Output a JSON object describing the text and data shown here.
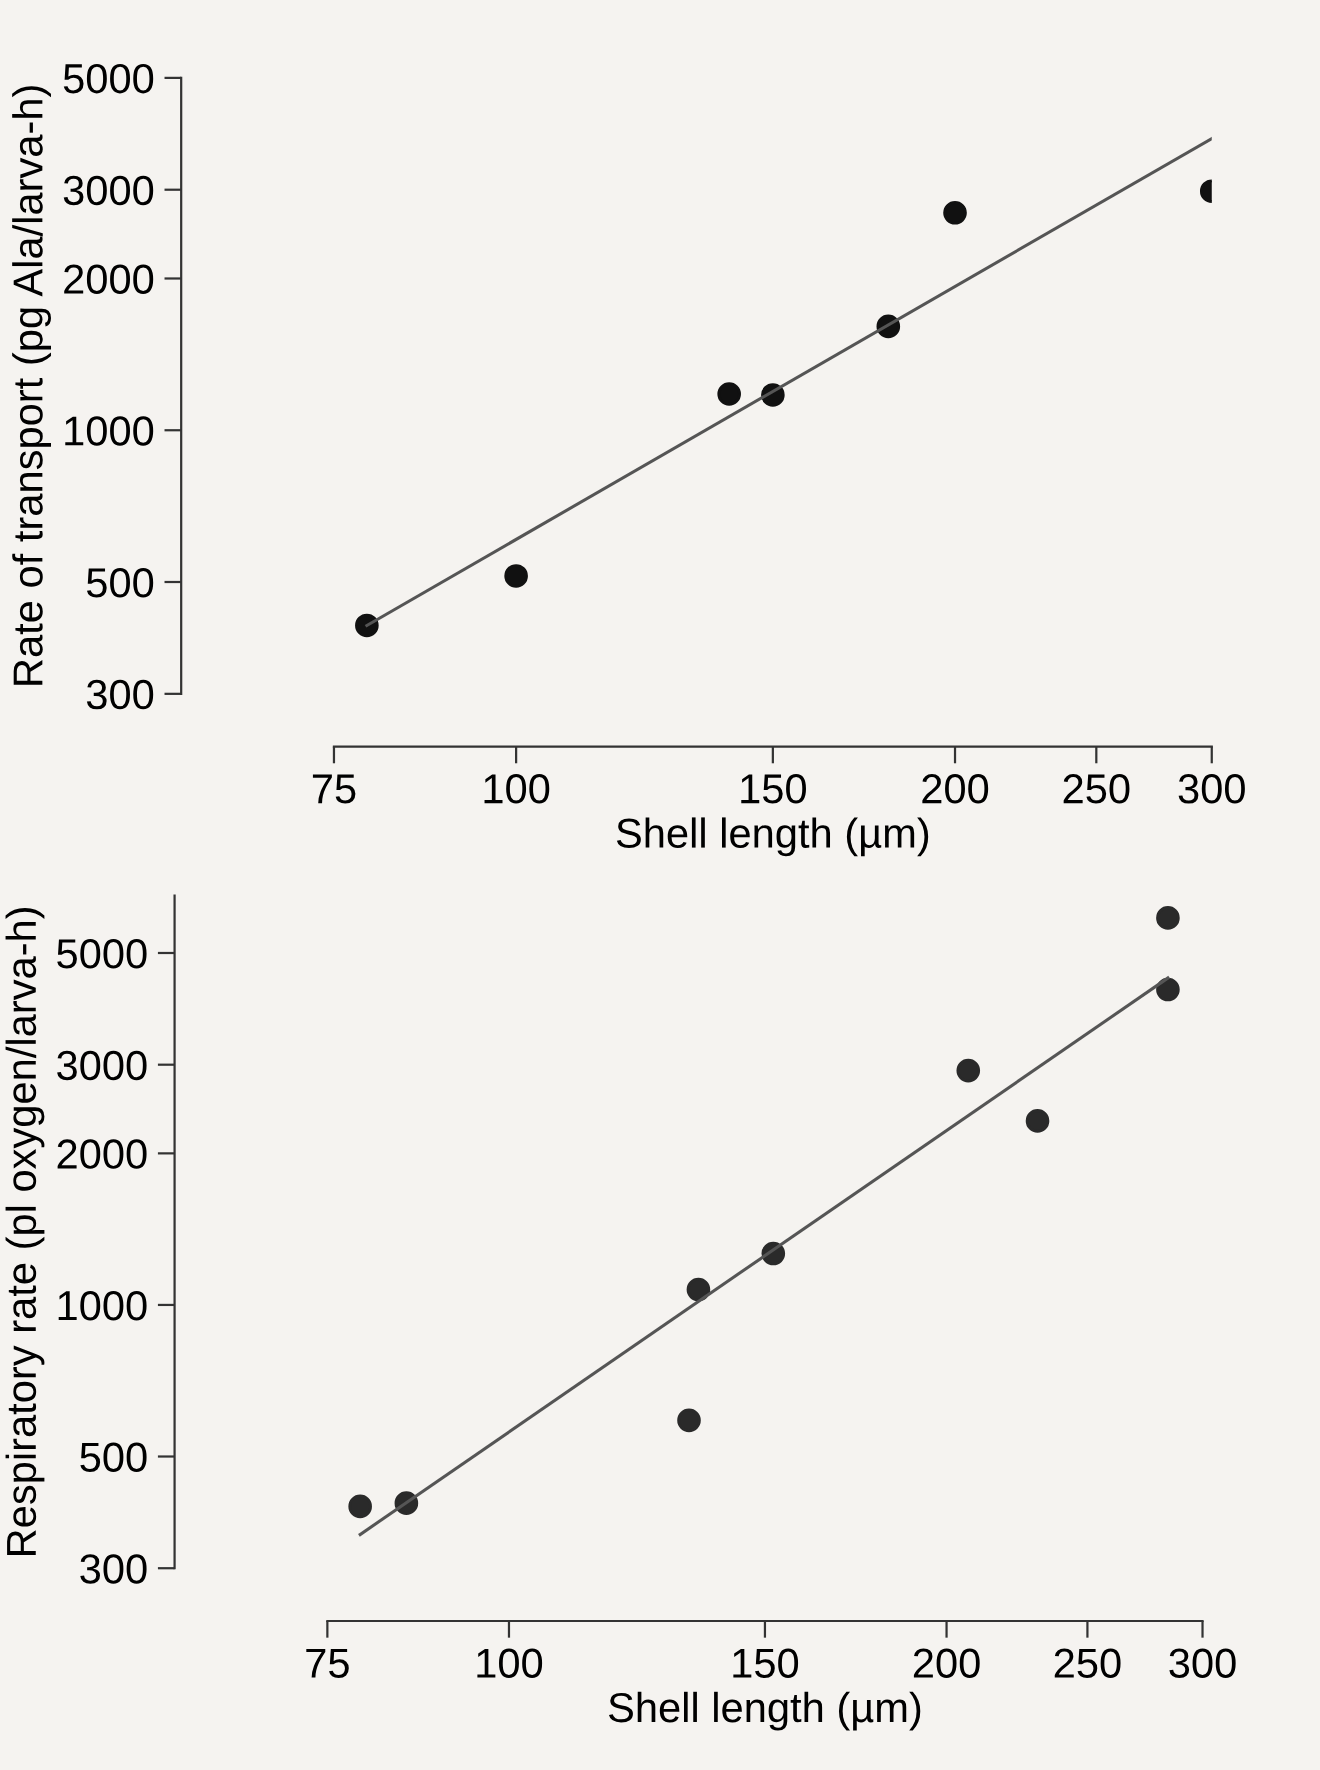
{
  "chart_data": [
    {
      "type": "scatter",
      "xlabel": "Shell length (µm)",
      "ylabel": "Rate of transport (pg Ala/larva-h)",
      "log": "xy",
      "xlim": [
        75,
        300
      ],
      "ylim": [
        300,
        5000
      ],
      "xticks": [
        75,
        100,
        150,
        200,
        250,
        300
      ],
      "yticks": [
        300,
        500,
        1000,
        2000,
        3000,
        5000
      ],
      "grid": false,
      "legend": false,
      "series": [
        {
          "color": "#111111",
          "marker": "circle",
          "x": [
            79,
            100,
            140,
            150,
            180,
            200,
            300
          ],
          "values": [
            410,
            514,
            1180,
            1175,
            1607,
            2700,
            2980
          ]
        },
        {
          "type": "line",
          "color": "#555555",
          "marker": "none",
          "line_style": "solid",
          "x": [
            79,
            300
          ],
          "values": [
            410,
            3790
          ]
        }
      ]
    },
    {
      "type": "scatter",
      "xlabel": "Shell length (µm)",
      "ylabel": "Respiratory rate (pl oxygen/larva-h)",
      "log": "xy",
      "xlim": [
        75,
        300
      ],
      "ylim": [
        300,
        6500
      ],
      "xticks": [
        75,
        100,
        150,
        200,
        250,
        300
      ],
      "yticks": [
        300,
        500,
        1000,
        2000,
        3000,
        5000
      ],
      "grid": false,
      "legend": false,
      "series": [
        {
          "color": "#2a2a2a",
          "marker": "circle",
          "x": [
            79,
            85,
            135,
            133,
            152,
            207,
            231,
            284,
            284
          ],
          "values": [
            398,
            404,
            1073,
            590,
            1265,
            2920,
            2320,
            5870,
            4230
          ]
        },
        {
          "type": "line",
          "color": "#555555",
          "marker": "none",
          "line_style": "solid",
          "x": [
            79,
            284
          ],
          "values": [
            350,
            4460
          ]
        }
      ]
    }
  ]
}
